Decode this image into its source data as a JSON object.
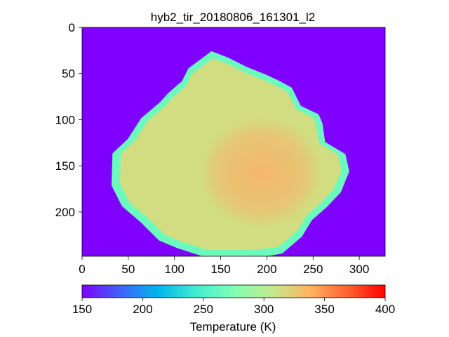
{
  "chart_data": {
    "type": "heatmap",
    "title": "hyb2_tir_20180806_161301_l2",
    "xlabel": "",
    "ylabel": "",
    "xlim": [
      0,
      328
    ],
    "ylim": [
      248,
      0
    ],
    "x_ticks": [
      "0",
      "50",
      "100",
      "150",
      "200",
      "250",
      "300"
    ],
    "y_ticks": [
      "0",
      "50",
      "100",
      "150",
      "200"
    ],
    "background_value": 150,
    "colormap": "rainbow",
    "colorbar": {
      "label": "Temperature (K)",
      "range": [
        150,
        400
      ],
      "ticks": [
        "150",
        "200",
        "250",
        "300",
        "350",
        "400"
      ],
      "orientation": "horizontal",
      "position": "bottom"
    },
    "object": {
      "name": "",
      "outline": [
        [
          140,
          27
        ],
        [
          158,
          34
        ],
        [
          178,
          44
        ],
        [
          198,
          52
        ],
        [
          211,
          58
        ],
        [
          226,
          66
        ],
        [
          236,
          86
        ],
        [
          255,
          95
        ],
        [
          259,
          104
        ],
        [
          262,
          125
        ],
        [
          284,
          138
        ],
        [
          288,
          156
        ],
        [
          279,
          178
        ],
        [
          264,
          194
        ],
        [
          248,
          208
        ],
        [
          237,
          226
        ],
        [
          216,
          244
        ],
        [
          205,
          246
        ],
        [
          184,
          248
        ],
        [
          134,
          248
        ],
        [
          103,
          238
        ],
        [
          84,
          230
        ],
        [
          65,
          211
        ],
        [
          44,
          193
        ],
        [
          33,
          171
        ],
        [
          34,
          137
        ],
        [
          50,
          122
        ],
        [
          65,
          99
        ],
        [
          85,
          82
        ],
        [
          94,
          72
        ],
        [
          109,
          59
        ],
        [
          116,
          45
        ],
        [
          135,
          31
        ]
      ],
      "limb_value": 265,
      "interior_value": 315,
      "warm_region_value": 332
    }
  }
}
